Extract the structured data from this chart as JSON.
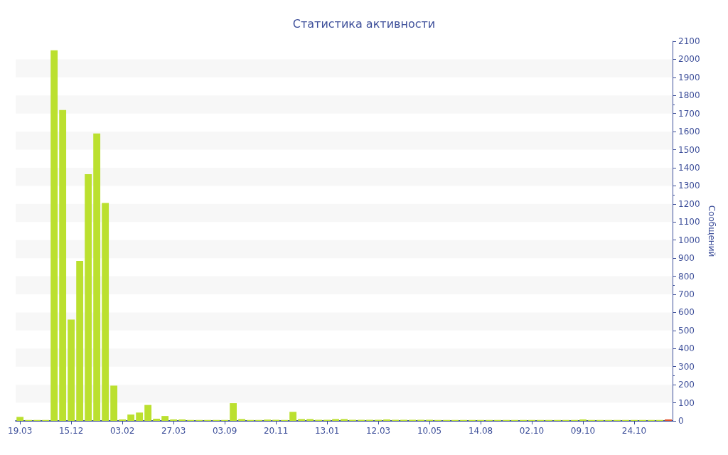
{
  "chart_data": {
    "type": "bar",
    "title": "Статистика активности",
    "ylabel": "Сообщений",
    "categories": [
      "19.03",
      null,
      null,
      null,
      null,
      null,
      "15.12",
      null,
      null,
      null,
      null,
      null,
      "03.02",
      null,
      null,
      null,
      null,
      null,
      "27.03",
      null,
      null,
      null,
      null,
      null,
      "03.09",
      null,
      null,
      null,
      null,
      null,
      "20.11",
      null,
      null,
      null,
      null,
      null,
      "13.01",
      null,
      null,
      null,
      null,
      null,
      "12.03",
      null,
      null,
      null,
      null,
      null,
      "10.05",
      null,
      null,
      null,
      null,
      null,
      "14.08",
      null,
      null,
      null,
      null,
      null,
      "02.10",
      null,
      null,
      null,
      null,
      null,
      "09.10",
      null,
      null,
      null,
      null,
      null,
      "24.10",
      null,
      null,
      null,
      null
    ],
    "values": [
      22,
      5,
      5,
      5,
      2050,
      1720,
      560,
      885,
      1365,
      1590,
      1205,
      195,
      8,
      35,
      46,
      88,
      12,
      27,
      8,
      8,
      5,
      5,
      5,
      5,
      5,
      98,
      10,
      5,
      5,
      7,
      6,
      5,
      50,
      10,
      10,
      6,
      6,
      10,
      10,
      6,
      6,
      6,
      6,
      8,
      6,
      6,
      6,
      6,
      6,
      5,
      5,
      5,
      5,
      5,
      5,
      5,
      5,
      5,
      5,
      5,
      5,
      5,
      5,
      5,
      5,
      5,
      8,
      5,
      5,
      5,
      5,
      5,
      5,
      5,
      5,
      5,
      8
    ],
    "colors": [
      "#bbe02f",
      "#bbe02f",
      "#bbe02f",
      "#bbe02f",
      "#bbe02f",
      "#bbe02f",
      "#bbe02f",
      "#bbe02f",
      "#bbe02f",
      "#bbe02f",
      "#bbe02f",
      "#bbe02f",
      "#bbe02f",
      "#bbe02f",
      "#bbe02f",
      "#bbe02f",
      "#bbe02f",
      "#bbe02f",
      "#bbe02f",
      "#bbe02f",
      "#bbe02f",
      "#bbe02f",
      "#bbe02f",
      "#bbe02f",
      "#bbe02f",
      "#bbe02f",
      "#bbe02f",
      "#bbe02f",
      "#bbe02f",
      "#bbe02f",
      "#bbe02f",
      "#bbe02f",
      "#bbe02f",
      "#bbe02f",
      "#bbe02f",
      "#bbe02f",
      "#bbe02f",
      "#bbe02f",
      "#bbe02f",
      "#bbe02f",
      "#bbe02f",
      "#bbe02f",
      "#bbe02f",
      "#bbe02f",
      "#bbe02f",
      "#bbe02f",
      "#bbe02f",
      "#bbe02f",
      "#bbe02f",
      "#bbe02f",
      "#bbe02f",
      "#bbe02f",
      "#bbe02f",
      "#bbe02f",
      "#bbe02f",
      "#bbe02f",
      "#bbe02f",
      "#bbe02f",
      "#bbe02f",
      "#bbe02f",
      "#bbe02f",
      "#bbe02f",
      "#bbe02f",
      "#bbe02f",
      "#bbe02f",
      "#bbe02f",
      "#bbe02f",
      "#bbe02f",
      "#bbe02f",
      "#bbe02f",
      "#bbe02f",
      "#bbe02f",
      "#bbe02f",
      "#bbe02f",
      "#bbe02f",
      "#bbe02f",
      "#e0502a"
    ],
    "ylim": [
      0,
      2100
    ],
    "yticks": [
      0,
      100,
      200,
      300,
      400,
      500,
      600,
      700,
      800,
      900,
      1000,
      1100,
      1200,
      1300,
      1400,
      1500,
      1600,
      1700,
      1800,
      1900,
      2000,
      2100
    ],
    "bands": [
      {
        "axis": "y",
        "from": 100,
        "to": 200,
        "color": "#f7f7f7"
      },
      {
        "axis": "y",
        "from": 300,
        "to": 400,
        "color": "#f7f7f7"
      },
      {
        "axis": "y",
        "from": 500,
        "to": 600,
        "color": "#f7f7f7"
      },
      {
        "axis": "y",
        "from": 700,
        "to": 800,
        "color": "#f7f7f7"
      },
      {
        "axis": "y",
        "from": 900,
        "to": 1000,
        "color": "#f7f7f7"
      },
      {
        "axis": "y",
        "from": 1100,
        "to": 1200,
        "color": "#f7f7f7"
      },
      {
        "axis": "y",
        "from": 1300,
        "to": 1400,
        "color": "#f7f7f7"
      },
      {
        "axis": "y",
        "from": 1500,
        "to": 1600,
        "color": "#f7f7f7"
      },
      {
        "axis": "y",
        "from": 1700,
        "to": 1800,
        "color": "#f7f7f7"
      },
      {
        "axis": "y",
        "from": 1900,
        "to": 2000,
        "color": "#f7f7f7"
      }
    ]
  }
}
